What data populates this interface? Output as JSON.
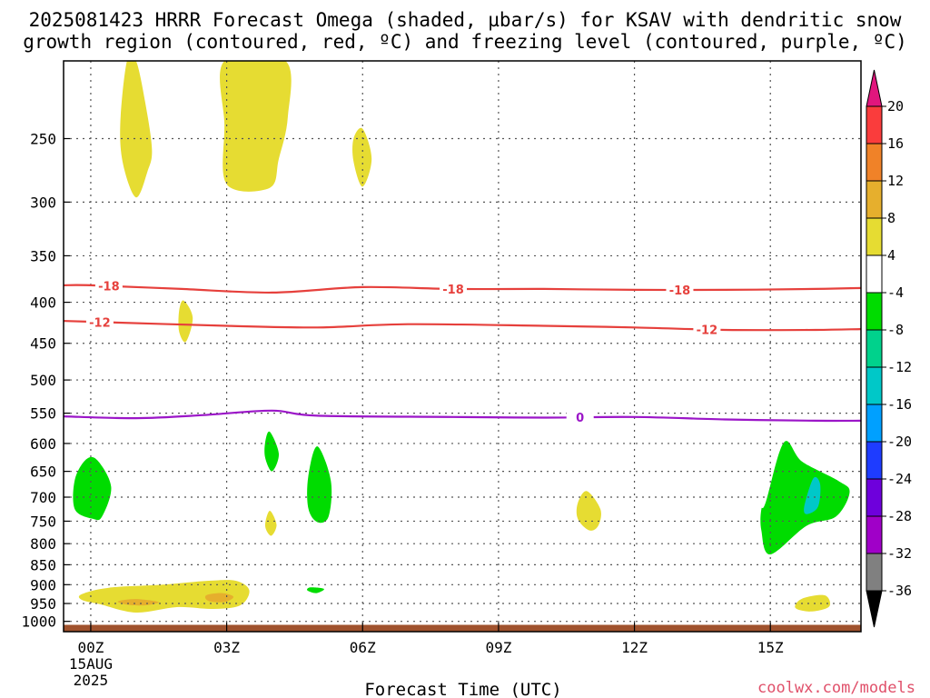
{
  "title": {
    "line1": "2025081423 HRRR Forecast Omega (shaded, µbar/s) for KSAV with dendritic snow",
    "line2": "growth region (contoured, red, ºC) and freezing level (contoured, purple, ºC)"
  },
  "credit": "coolwx.com/models",
  "chart_data": {
    "type": "contour",
    "title": "2025081423 HRRR Forecast Omega (shaded, µbar/s) for KSAV with dendritic snow growth region (contoured, red, ºC) and freezing level (contoured, purple, ºC)",
    "xlabel": "Forecast Time (UTC)",
    "ylabel": "",
    "x_range_hours": [
      -0.6,
      17
    ],
    "y_range_hPa": [
      1030,
      200
    ],
    "y_scale": "log",
    "x_ticks": [
      {
        "hour": 0,
        "label": "00Z",
        "sub": [
          "15AUG",
          "2025"
        ]
      },
      {
        "hour": 3,
        "label": "03Z",
        "sub": []
      },
      {
        "hour": 6,
        "label": "06Z",
        "sub": []
      },
      {
        "hour": 9,
        "label": "09Z",
        "sub": []
      },
      {
        "hour": 12,
        "label": "12Z",
        "sub": []
      },
      {
        "hour": 15,
        "label": "15Z",
        "sub": []
      }
    ],
    "y_ticks": [
      {
        "p": 250,
        "label": "250"
      },
      {
        "p": 300,
        "label": "300"
      },
      {
        "p": 350,
        "label": "350"
      },
      {
        "p": 400,
        "label": "400"
      },
      {
        "p": 450,
        "label": "450"
      },
      {
        "p": 500,
        "label": "500"
      },
      {
        "p": 550,
        "label": "550"
      },
      {
        "p": 600,
        "label": "600"
      },
      {
        "p": 650,
        "label": "650"
      },
      {
        "p": 700,
        "label": "700"
      },
      {
        "p": 750,
        "label": "750"
      },
      {
        "p": 800,
        "label": "800"
      },
      {
        "p": 850,
        "label": "850"
      },
      {
        "p": 900,
        "label": "900"
      },
      {
        "p": 950,
        "label": "950"
      },
      {
        "p": 1000,
        "label": "1000"
      }
    ],
    "grid": true,
    "colorbar": {
      "position": "right",
      "bands": [
        {
          "color": "#808080"
        },
        {
          "color": "#a000c8"
        },
        {
          "color": "#6e00dc"
        },
        {
          "color": "#1e3cff"
        },
        {
          "color": "#00a0ff"
        },
        {
          "color": "#00c8c8"
        },
        {
          "color": "#00d28c"
        },
        {
          "color": "#00dc00"
        },
        {
          "color": "#ffffff"
        },
        {
          "color": "#e6dc32"
        },
        {
          "color": "#e6af2d"
        },
        {
          "color": "#f08228"
        },
        {
          "color": "#fa3c3c"
        }
      ],
      "under_color": "#000000",
      "over_color": "#e1167d",
      "labels": [
        "20",
        "16",
        "12",
        "8",
        "4",
        "-4",
        "-8",
        "-12",
        "-16",
        "-20",
        "-24",
        "-28",
        "-32",
        "-36"
      ]
    },
    "contours": [
      {
        "label": "-18",
        "color": "#e6403c",
        "points": [
          [
            -0.6,
            381
          ],
          [
            0,
            381
          ],
          [
            2,
            385
          ],
          [
            4,
            389
          ],
          [
            6,
            383
          ],
          [
            8,
            385
          ],
          [
            10,
            385
          ],
          [
            12,
            386
          ],
          [
            14,
            386
          ],
          [
            16,
            385
          ],
          [
            17,
            384
          ]
        ],
        "label_hours": [
          0.4,
          8,
          13
        ]
      },
      {
        "label": "-12",
        "color": "#e6403c",
        "points": [
          [
            -0.6,
            422
          ],
          [
            0,
            423
          ],
          [
            3,
            428
          ],
          [
            5,
            430
          ],
          [
            7,
            426
          ],
          [
            10,
            428
          ],
          [
            12,
            430
          ],
          [
            14,
            433
          ],
          [
            16,
            433
          ],
          [
            17,
            432
          ]
        ],
        "label_hours": [
          0.2,
          13.6
        ]
      },
      {
        "label": "0",
        "color": "#9b16c8",
        "points": [
          [
            -0.6,
            555
          ],
          [
            1,
            558
          ],
          [
            2.5,
            553
          ],
          [
            4,
            546
          ],
          [
            5,
            554
          ],
          [
            8,
            556
          ],
          [
            10,
            557
          ],
          [
            12,
            556
          ],
          [
            14,
            560
          ],
          [
            16,
            562
          ],
          [
            17,
            562
          ]
        ],
        "label_hours": [
          10.8
        ]
      }
    ],
    "shaded_regions": [
      {
        "value_range": [
          4,
          8
        ],
        "points": [
          [
            1,
            200
          ],
          [
            1.2,
            225
          ],
          [
            1.35,
            258
          ],
          [
            1.25,
            275
          ],
          [
            1.0,
            296
          ],
          [
            0.72,
            270
          ],
          [
            0.65,
            240
          ],
          [
            0.8,
            200
          ]
        ]
      },
      {
        "value_range": [
          4,
          8
        ],
        "points": [
          [
            2.95,
            200
          ],
          [
            4.3,
            200
          ],
          [
            4.35,
            235
          ],
          [
            4.15,
            265
          ],
          [
            3.95,
            288
          ],
          [
            3.0,
            285
          ],
          [
            2.95,
            240
          ]
        ]
      },
      {
        "value_range": [
          4,
          8
        ],
        "points": [
          [
            6.0,
            243
          ],
          [
            6.2,
            265
          ],
          [
            6.0,
            287
          ],
          [
            5.8,
            267
          ],
          [
            5.8,
            250
          ]
        ]
      },
      {
        "value_range": [
          4,
          8
        ],
        "points": [
          [
            2.05,
            398
          ],
          [
            2.25,
            418
          ],
          [
            2.1,
            448
          ],
          [
            1.95,
            435
          ],
          [
            1.95,
            410
          ]
        ]
      },
      {
        "value_range": [
          4,
          8
        ],
        "points": [
          [
            3.95,
            728
          ],
          [
            4.1,
            758
          ],
          [
            3.98,
            782
          ],
          [
            3.85,
            760
          ]
        ]
      },
      {
        "value_range": [
          4,
          8
        ],
        "points": [
          [
            10.95,
            688
          ],
          [
            11.25,
            725
          ],
          [
            11.2,
            760
          ],
          [
            11.0,
            770
          ],
          [
            10.75,
            745
          ],
          [
            10.75,
            712
          ]
        ]
      },
      {
        "value_range": [
          4,
          8
        ],
        "points": [
          [
            -0.2,
            925
          ],
          [
            0.4,
            908
          ],
          [
            1.6,
            900
          ],
          [
            2.6,
            890
          ],
          [
            3.2,
            890
          ],
          [
            3.5,
            915
          ],
          [
            3.3,
            955
          ],
          [
            2.7,
            965
          ],
          [
            1.9,
            960
          ],
          [
            1.0,
            975
          ],
          [
            0.2,
            952
          ],
          [
            -0.2,
            940
          ]
        ]
      },
      {
        "value_range": [
          8,
          12
        ],
        "points": [
          [
            0.6,
            944
          ],
          [
            1.0,
            938
          ],
          [
            1.5,
            946
          ],
          [
            1.2,
            955
          ],
          [
            0.8,
            953
          ]
        ]
      },
      {
        "value_range": [
          8,
          12
        ],
        "points": [
          [
            2.55,
            928
          ],
          [
            2.9,
            922
          ],
          [
            3.15,
            932
          ],
          [
            2.95,
            946
          ],
          [
            2.6,
            943
          ]
        ]
      },
      {
        "value_range": [
          4,
          8
        ],
        "points": [
          [
            15.7,
            937
          ],
          [
            16.2,
            928
          ],
          [
            16.3,
            958
          ],
          [
            15.9,
            972
          ],
          [
            15.55,
            962
          ]
        ]
      },
      {
        "value_range": [
          -8,
          -4
        ],
        "points": [
          [
            -0.1,
            628
          ],
          [
            0.15,
            630
          ],
          [
            0.45,
            680
          ],
          [
            0.25,
            740
          ],
          [
            0.05,
            745
          ],
          [
            -0.35,
            725
          ],
          [
            -0.35,
            665
          ]
        ]
      },
      {
        "value_range": [
          -8,
          -4
        ],
        "points": [
          [
            3.95,
            580
          ],
          [
            4.15,
            618
          ],
          [
            4.0,
            650
          ],
          [
            3.85,
            625
          ],
          [
            3.85,
            598
          ]
        ]
      },
      {
        "value_range": [
          -8,
          -4
        ],
        "points": [
          [
            5.0,
            605
          ],
          [
            5.3,
            668
          ],
          [
            5.25,
            740
          ],
          [
            5.0,
            752
          ],
          [
            4.8,
            722
          ],
          [
            4.8,
            660
          ]
        ]
      },
      {
        "value_range": [
          -8,
          -4
        ],
        "points": [
          [
            4.85,
            907
          ],
          [
            5.15,
            911
          ],
          [
            4.98,
            922
          ],
          [
            4.78,
            915
          ]
        ]
      },
      {
        "value_range": [
          -8,
          -4
        ],
        "points": [
          [
            15.3,
            598
          ],
          [
            15.7,
            632
          ],
          [
            16.5,
            668
          ],
          [
            16.75,
            690
          ],
          [
            16.45,
            740
          ],
          [
            15.8,
            760
          ],
          [
            15.0,
            825
          ],
          [
            14.8,
            770
          ],
          [
            14.8,
            725
          ],
          [
            14.9,
            710
          ]
        ]
      },
      {
        "value_range": [
          -12,
          -8
        ],
        "points": [
          [
            15.95,
            663
          ],
          [
            16.1,
            675
          ],
          [
            16.05,
            720
          ],
          [
            15.8,
            735
          ],
          [
            15.75,
            718
          ]
        ]
      }
    ]
  }
}
